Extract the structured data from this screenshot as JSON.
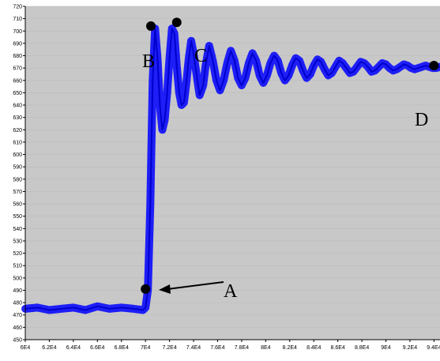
{
  "colors": {
    "plot_background": "#c8c8c8",
    "series": "#0000ff",
    "axes": "#000000",
    "markers": "#000000"
  },
  "chart_data": {
    "type": "line",
    "title": "",
    "xlabel": "",
    "ylabel": "",
    "grid": true,
    "legend": "none",
    "xlim": [
      60000,
      94500
    ],
    "ylim": [
      450,
      720
    ],
    "x_tick_labels": [
      "6E4",
      "6.2E4",
      "6.4E4",
      "6.6E4",
      "6.8E4",
      "7E4",
      "7.2E4",
      "7.4E4",
      "7.6E4",
      "7.8E4",
      "8E4",
      "8.2E4",
      "8.4E4",
      "8.6E4",
      "8.8E4",
      "9E4",
      "9.2E4",
      "9.4E4"
    ],
    "x_tick_values": [
      60000,
      62000,
      64000,
      66000,
      68000,
      70000,
      72000,
      74000,
      76000,
      78000,
      80000,
      82000,
      84000,
      86000,
      88000,
      90000,
      92000,
      94000
    ],
    "y_tick_labels": [
      "450",
      "460",
      "470",
      "480",
      "490",
      "500",
      "510",
      "520",
      "530",
      "540",
      "550",
      "560",
      "570",
      "580",
      "590",
      "600",
      "610",
      "620",
      "630",
      "640",
      "650",
      "660",
      "670",
      "680",
      "690",
      "700",
      "710",
      "720"
    ],
    "y_tick_values": [
      450,
      460,
      470,
      480,
      490,
      500,
      510,
      520,
      530,
      540,
      550,
      560,
      570,
      580,
      590,
      600,
      610,
      620,
      630,
      640,
      650,
      660,
      670,
      680,
      690,
      700,
      710,
      720
    ],
    "series": [
      {
        "x": [
          60000,
          61000,
          62000,
          63000,
          64000,
          65000,
          66000,
          67000,
          68000,
          69000,
          69800,
          70000,
          70200,
          70400,
          70600,
          70800,
          71000,
          71200,
          71400,
          71600,
          71800,
          72000,
          72200,
          72400,
          72600,
          72800,
          73000,
          73200,
          73400,
          73600,
          73800,
          74000,
          74200,
          74500,
          74800,
          75000,
          75300,
          75600,
          75900,
          76200,
          76500,
          76800,
          77100,
          77400,
          77700,
          78000,
          78300,
          78600,
          78900,
          79200,
          79500,
          79800,
          80100,
          80400,
          80700,
          81000,
          81300,
          81600,
          81900,
          82200,
          82500,
          82800,
          83100,
          83400,
          83700,
          84000,
          84300,
          84600,
          84900,
          85200,
          85500,
          85800,
          86100,
          86400,
          86700,
          87000,
          87300,
          87600,
          87900,
          88200,
          88500,
          88800,
          89100,
          89400,
          89700,
          90000,
          90300,
          90600,
          90900,
          91200,
          91500,
          91800,
          92100,
          92400,
          92700,
          93000,
          93300,
          93600,
          93900,
          94200,
          94500
        ],
        "y": [
          475,
          476,
          474,
          475,
          476,
          474,
          477,
          475,
          476,
          475,
          474,
          476,
          490,
          560,
          660,
          702,
          678,
          640,
          620,
          628,
          650,
          678,
          702,
          698,
          672,
          650,
          640,
          642,
          658,
          678,
          692,
          682,
          668,
          648,
          656,
          672,
          688,
          676,
          660,
          652,
          660,
          674,
          684,
          676,
          662,
          656,
          662,
          674,
          682,
          676,
          664,
          658,
          664,
          674,
          680,
          676,
          666,
          660,
          664,
          672,
          678,
          676,
          668,
          662,
          665,
          672,
          677,
          675,
          669,
          664,
          666,
          671,
          676,
          674,
          670,
          666,
          667,
          671,
          675,
          674,
          671,
          667,
          668,
          671,
          674,
          673,
          670,
          668,
          669,
          671,
          673,
          672,
          670,
          669,
          670,
          671,
          672,
          671,
          670,
          670,
          671
        ]
      }
    ],
    "annotations": [
      {
        "label": "A",
        "point": [
          70000,
          491
        ]
      },
      {
        "label": "B",
        "point": [
          70450,
          704
        ]
      },
      {
        "label": "C",
        "point": [
          72600,
          707
        ]
      },
      {
        "label": "D",
        "point": [
          94000,
          672
        ]
      }
    ]
  }
}
